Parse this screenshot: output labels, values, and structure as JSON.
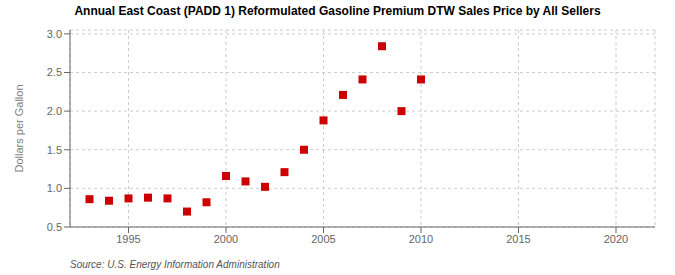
{
  "chart_data": {
    "type": "scatter",
    "title": "Annual East Coast (PADD 1) Reformulated Gasoline Premium DTW Sales Price by All Sellers",
    "ylabel": "Dollars per Gallon",
    "annotation": "Source: U.S. Energy Information Administration",
    "x": [
      1993,
      1994,
      1995,
      1996,
      1997,
      1998,
      1999,
      2000,
      2001,
      2002,
      2003,
      2004,
      2005,
      2006,
      2007,
      2008,
      2009,
      2010
    ],
    "values": [
      0.86,
      0.84,
      0.87,
      0.88,
      0.87,
      0.7,
      0.82,
      1.16,
      1.09,
      1.02,
      1.21,
      1.5,
      1.88,
      2.21,
      2.41,
      2.84,
      2.0,
      2.41
    ],
    "color": "#cc0000",
    "marker": "square",
    "xlim": [
      1992,
      2022
    ],
    "ylim": [
      0.5,
      3.05
    ],
    "xticks": [
      1995,
      2000,
      2005,
      2010,
      2015,
      2020
    ],
    "yticks": [
      0.5,
      {
        "value": 1,
        "label": "1.0"
      },
      1.5,
      {
        "value": 2,
        "label": "2.0"
      },
      2.5,
      {
        "value": 3,
        "label": "3.0"
      }
    ],
    "grid": true
  }
}
